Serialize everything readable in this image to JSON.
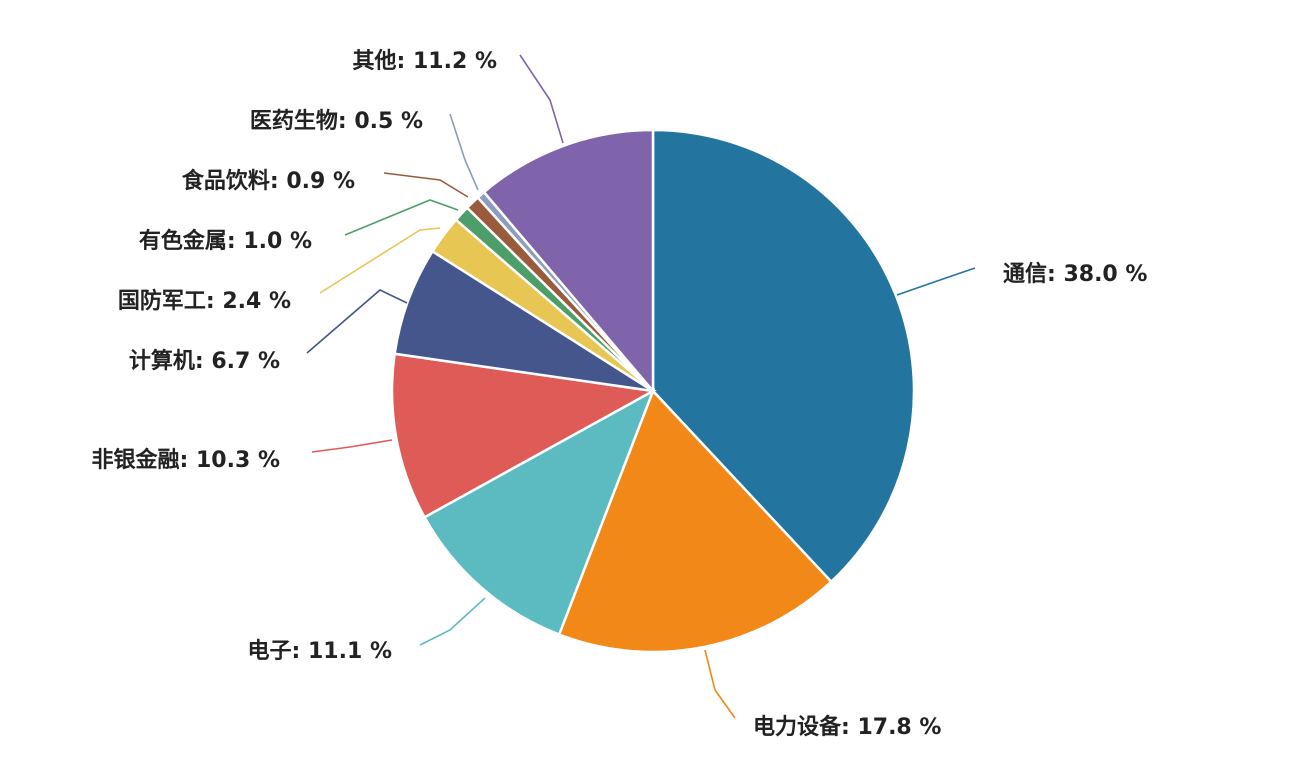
{
  "chart_data": {
    "type": "pie",
    "title": "",
    "slices": [
      {
        "label": "通信",
        "value": 38.0,
        "display": "通信: 38.0 %",
        "color": "#23759F"
      },
      {
        "label": "电力设备",
        "value": 17.8,
        "display": "电力设备: 17.8 %",
        "color": "#F18818"
      },
      {
        "label": "电子",
        "value": 11.1,
        "display": "电子: 11.1 %",
        "color": "#5BBBC1"
      },
      {
        "label": "非银金融",
        "value": 10.3,
        "display": "非银金融: 10.3 %",
        "color": "#DE5B58"
      },
      {
        "label": "计算机",
        "value": 6.7,
        "display": "计算机: 6.7 %",
        "color": "#44568C"
      },
      {
        "label": "国防军工",
        "value": 2.4,
        "display": "国防军工: 2.4 %",
        "color": "#E8C653"
      },
      {
        "label": "有色金属",
        "value": 1.0,
        "display": "有色金属: 1.0 %",
        "color": "#4D9E69"
      },
      {
        "label": "食品饮料",
        "value": 0.9,
        "display": "食品饮料: 0.9 %",
        "color": "#9A5B3D"
      },
      {
        "label": "医药生物",
        "value": 0.5,
        "display": "医药生物: 0.5 %",
        "color": "#8C9DBE"
      },
      {
        "label": "其他",
        "value": 11.2,
        "display": "其他: 11.2 %",
        "color": "#8064AB"
      }
    ],
    "start": "top",
    "direction": "clockwise"
  }
}
